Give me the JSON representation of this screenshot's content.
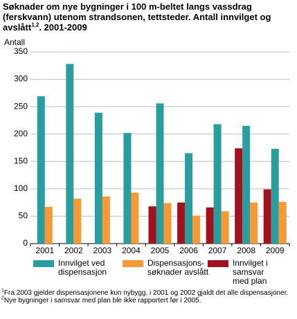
{
  "chart_data": {
    "type": "bar",
    "title": "Søknader om nye bygninger i 100 m-beltet langs vassdrag (ferskvann) utenom strandsonen, tettsteder. Antall innvilget og avslått",
    "title_superscript": "1,2",
    "title_end": ". 2001-2009",
    "y_label": "Antall",
    "categories": [
      "2001",
      "2002",
      "2003",
      "2004",
      "2005",
      "2006",
      "2007",
      "2008",
      "2009"
    ],
    "series": [
      {
        "name": "Innvilget ved\ndispensasjon",
        "color": "#2a9d9e",
        "values": [
          269,
          328,
          239,
          202,
          256,
          165,
          218,
          215,
          173
        ]
      },
      {
        "name": "Dispensasjons-\nsøknader avslått",
        "color": "#f59a35",
        "values": [
          67,
          82,
          86,
          93,
          74,
          51,
          59,
          75,
          76
        ]
      },
      {
        "name": "Innvilget i samsvar\nmed plan",
        "color": "#a3101e",
        "values": [
          null,
          null,
          null,
          null,
          68,
          75,
          66,
          174,
          99
        ]
      }
    ],
    "ylim": [
      0,
      350
    ],
    "yticks": [
      0,
      50,
      100,
      150,
      200,
      250,
      300,
      350
    ],
    "grid": true,
    "footnotes": [
      {
        "mark": "1",
        "text": "Fra 2003 gjelder dispensasjonene kun nybygg, i 2001 og 2002 gjaldt det alle dispensasjoner."
      },
      {
        "mark": "2",
        "text": "Nye bygninger i samsvar med plan ble ikke rapportert før i 2005."
      }
    ]
  }
}
